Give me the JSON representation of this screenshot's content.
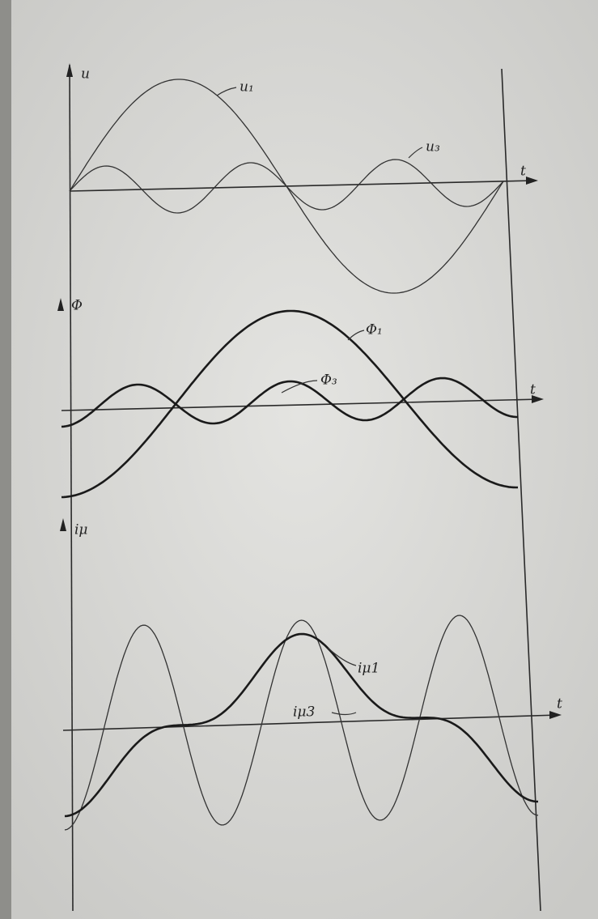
{
  "panels": [
    {
      "axis_label": "u",
      "time_label": "t",
      "curves": [
        "u₁",
        "u₃"
      ]
    },
    {
      "axis_label": "Φ",
      "time_label": "t",
      "curves": [
        "Φ₁",
        "Φ₃"
      ]
    },
    {
      "axis_label": "iμ",
      "time_label": "t",
      "curves": [
        "iμ1",
        "iμ3"
      ]
    }
  ]
}
